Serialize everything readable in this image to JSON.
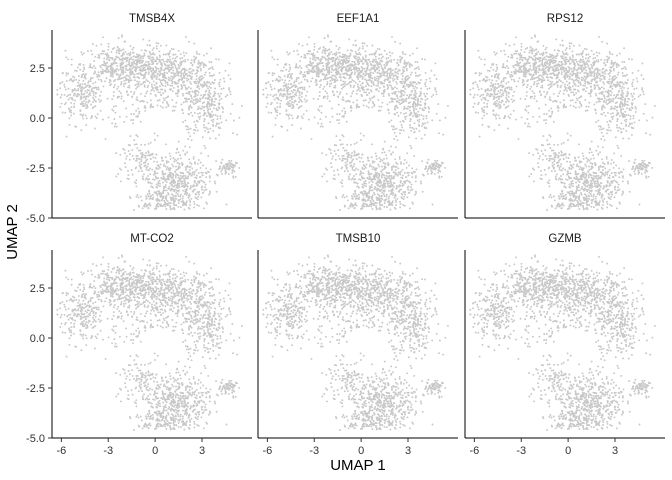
{
  "chart_data": {
    "type": "scatter",
    "xlabel": "UMAP 1",
    "ylabel": "UMAP 2",
    "xlim": [
      -6.6,
      6.2
    ],
    "ylim": [
      -5.0,
      4.4
    ],
    "x_ticks": [
      -6,
      -3,
      0,
      3
    ],
    "x_tick_labels": [
      "-6",
      "-3",
      "0",
      "3"
    ],
    "y_ticks": [
      2.5,
      0.0,
      -2.5,
      -5.0
    ],
    "y_tick_labels": [
      "2.5",
      "0.0",
      "-2.5",
      "-5.0"
    ],
    "grid": false,
    "legend": "none",
    "point_color": "#c8c8c8",
    "layout": {
      "rows": 2,
      "cols": 3
    },
    "panels": [
      {
        "title": "TMSB4X"
      },
      {
        "title": "EEF1A1"
      },
      {
        "title": "RPS12"
      },
      {
        "title": "MT-CO2"
      },
      {
        "title": "TMSB10"
      },
      {
        "title": "GZMB"
      }
    ],
    "clusters": [
      {
        "cx": -1.8,
        "cy": 2.6,
        "sx": 1.5,
        "sy": 0.6,
        "n": 520
      },
      {
        "cx": 1.2,
        "cy": 2.1,
        "sx": 1.2,
        "sy": 0.6,
        "n": 360
      },
      {
        "cx": 3.1,
        "cy": 0.8,
        "sx": 0.8,
        "sy": 0.9,
        "n": 300
      },
      {
        "cx": -4.8,
        "cy": 1.2,
        "sx": 0.7,
        "sy": 0.7,
        "n": 220
      },
      {
        "cx": -1.0,
        "cy": 0.5,
        "sx": 1.3,
        "sy": 0.9,
        "n": 160
      },
      {
        "cx": 1.4,
        "cy": -3.3,
        "sx": 1.1,
        "sy": 0.8,
        "n": 520
      },
      {
        "cx": -0.8,
        "cy": -2.0,
        "sx": 0.8,
        "sy": 0.6,
        "n": 130
      },
      {
        "cx": 0.6,
        "cy": -4.3,
        "sx": 0.8,
        "sy": 0.25,
        "n": 90
      },
      {
        "cx": 4.7,
        "cy": -2.5,
        "sx": 0.3,
        "sy": 0.2,
        "n": 70
      }
    ]
  }
}
